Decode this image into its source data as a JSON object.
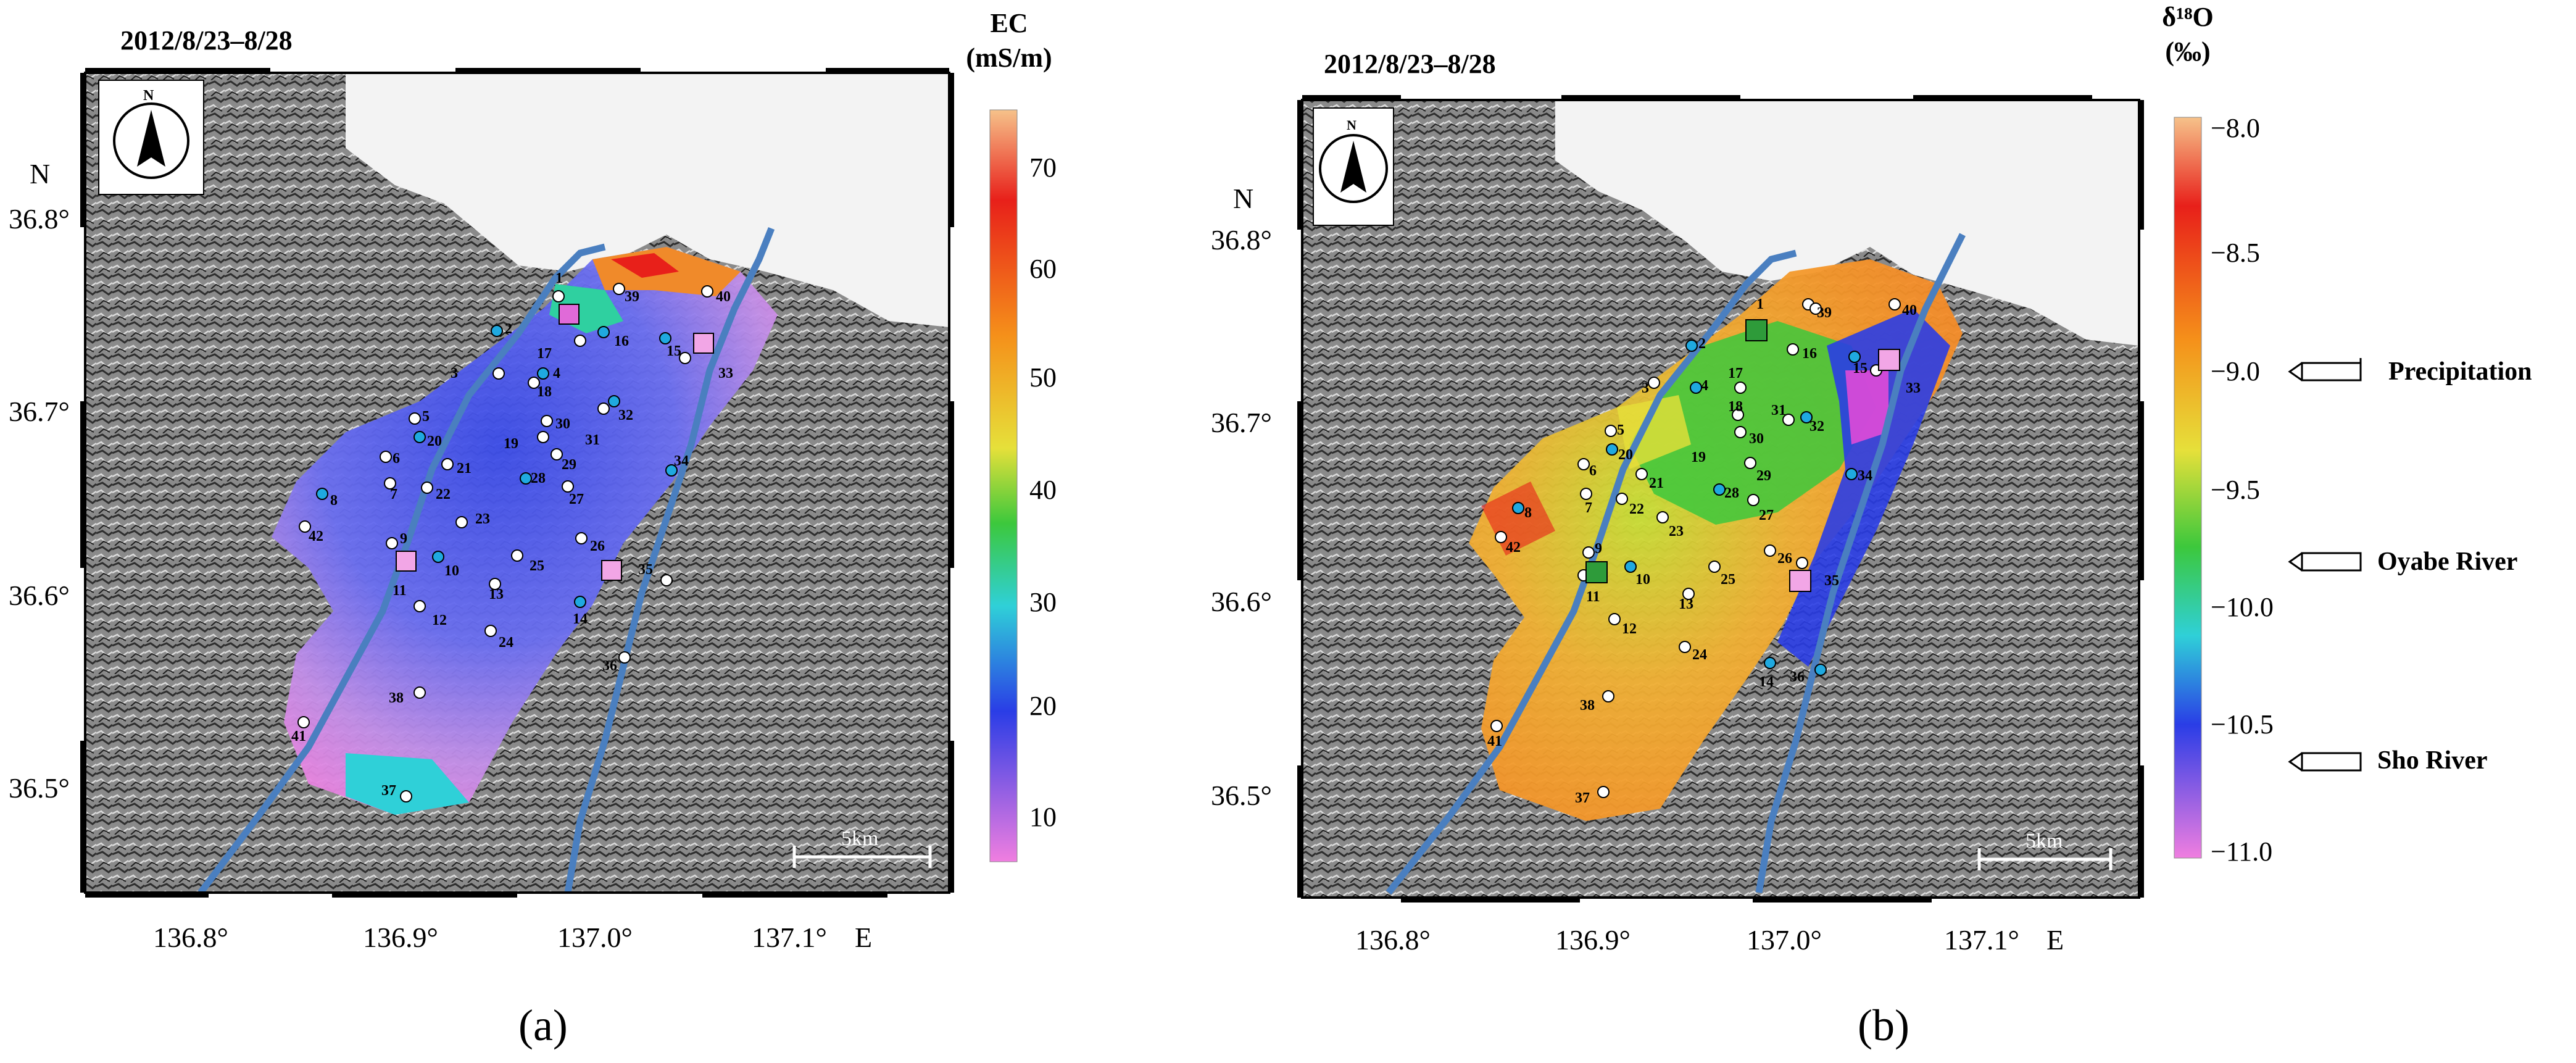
{
  "panels": [
    {
      "id": "a",
      "date": "2012/8/23–8/28",
      "sub_label": "(a)",
      "colorbar": {
        "title_line1": "EC",
        "title_line2": "(mS/m)",
        "ticks": [
          "70",
          "60",
          "50",
          "40",
          "30",
          "20",
          "10"
        ]
      }
    },
    {
      "id": "b",
      "date": "2012/8/23–8/28",
      "sub_label": "(b)",
      "colorbar": {
        "title_line1": "δ¹⁸O",
        "title_line2": "(‰)",
        "ticks": [
          "−8.0",
          "−8.5",
          "−9.0",
          "−9.5",
          "−10.0",
          "−10.5",
          "−11.0"
        ]
      },
      "annotations": [
        "Precipitation",
        "Oyabe River",
        "Sho River"
      ]
    }
  ],
  "axes": {
    "x_ticks": [
      "136.8°",
      "136.9°",
      "137.0°",
      "137.1°"
    ],
    "x_unit": "E",
    "y_ticks": [
      "36.8°",
      "36.7°",
      "36.6°",
      "36.5°"
    ],
    "y_unit": "N",
    "north_label": "N",
    "scale_label": "5km"
  },
  "station_labels": [
    "1",
    "2",
    "3",
    "4",
    "5",
    "6",
    "7",
    "8",
    "9",
    "10",
    "11",
    "12",
    "13",
    "14",
    "15",
    "16",
    "17",
    "18",
    "19",
    "20",
    "21",
    "22",
    "23",
    "24",
    "25",
    "26",
    "27",
    "28",
    "29",
    "30",
    "31",
    "32",
    "33",
    "34",
    "35",
    "36",
    "37",
    "38",
    "39",
    "40",
    "41",
    "42"
  ],
  "colors": {
    "river": "#4a7fc0",
    "gw_station_blue": "#1fa9e0",
    "river_station_green": "#2e9b3a",
    "pink_square": "#f2a6e6"
  }
}
